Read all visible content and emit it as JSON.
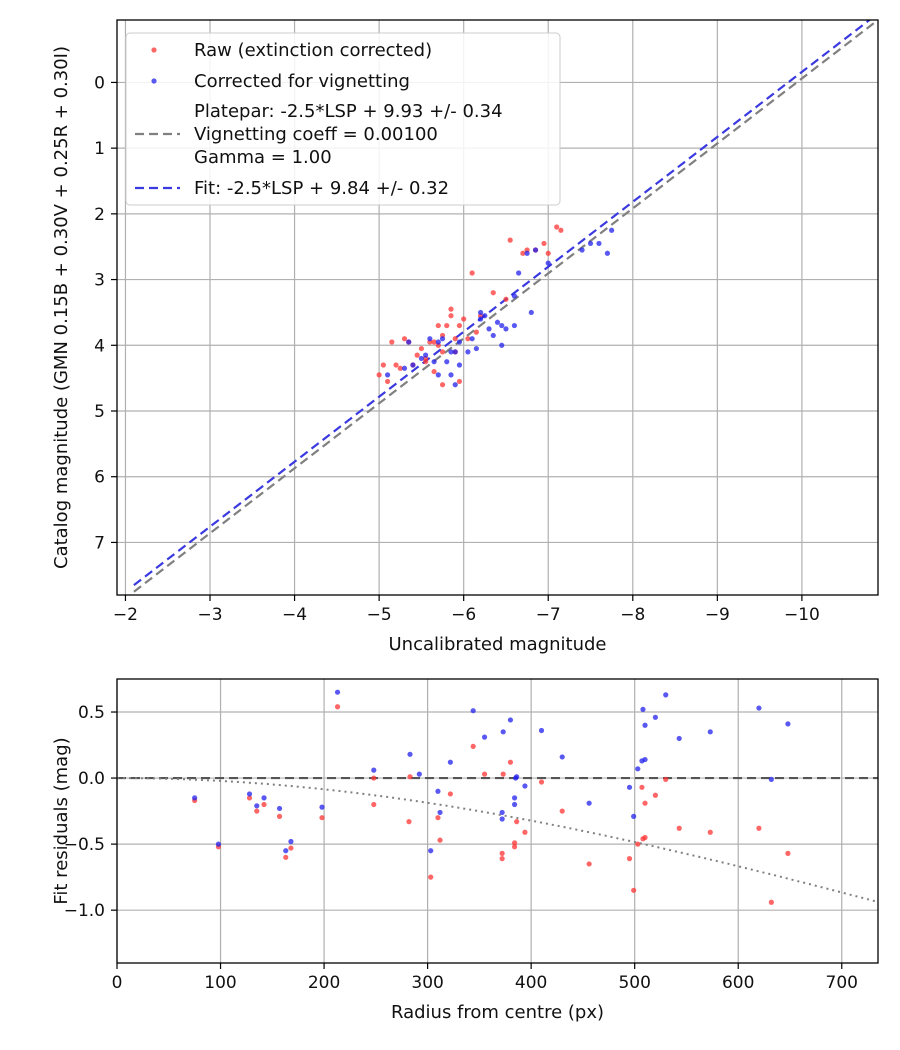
{
  "chart_data": [
    {
      "type": "scatter",
      "xlabel": "Uncalibrated magnitude",
      "ylabel": "Catalog magnitude (GMN 0.15B + 0.30V + 0.25R + 0.30I)",
      "xlim": [
        -1.9,
        -10.9
      ],
      "ylim": [
        7.8,
        -0.95
      ],
      "x_ticks": [
        -2,
        -3,
        -4,
        -5,
        -6,
        -7,
        -8,
        -9,
        -10
      ],
      "x_tick_labels": [
        "−2",
        "−3",
        "−4",
        "−5",
        "−6",
        "−7",
        "−8",
        "−9",
        "−10"
      ],
      "y_ticks": [
        0,
        1,
        2,
        3,
        4,
        5,
        6,
        7
      ],
      "y_tick_labels": [
        "0",
        "1",
        "2",
        "3",
        "4",
        "5",
        "6",
        "7"
      ],
      "grid": true,
      "legend_position": "top-left",
      "legend": {
        "raw": "Raw (extinction corrected)",
        "corrected": "Corrected for vignetting",
        "platepar_lines": [
          "Platepar: -2.5*LSP + 9.93 +/- 0.34",
          "Vignetting coeff = 0.00100",
          "Gamma = 1.00"
        ],
        "fit": "Fit: -2.5*LSP + 9.84 +/- 0.32"
      },
      "lines": [
        {
          "name": "platepar",
          "color": "#808080",
          "x": [
            -2.1,
            -10.9
          ],
          "y": [
            7.75,
            -0.95
          ]
        },
        {
          "name": "fit",
          "color": "#3a3ae0",
          "x": [
            -2.1,
            -10.9
          ],
          "y": [
            7.65,
            -1.05
          ]
        }
      ],
      "series": [
        {
          "name": "raw",
          "color": "#ff3333",
          "points": [
            [
              -5.0,
              4.45
            ],
            [
              -5.05,
              4.3
            ],
            [
              -5.1,
              4.55
            ],
            [
              -5.15,
              3.95
            ],
            [
              -5.2,
              4.3
            ],
            [
              -5.25,
              4.35
            ],
            [
              -5.3,
              3.9
            ],
            [
              -5.35,
              3.95
            ],
            [
              -5.4,
              4.3
            ],
            [
              -5.45,
              4.15
            ],
            [
              -5.5,
              4.05
            ],
            [
              -5.55,
              4.2
            ],
            [
              -5.6,
              3.95
            ],
            [
              -5.65,
              4.4
            ],
            [
              -5.7,
              4.0
            ],
            [
              -5.7,
              3.7
            ],
            [
              -5.75,
              3.85
            ],
            [
              -5.75,
              4.6
            ],
            [
              -5.8,
              3.7
            ],
            [
              -5.85,
              3.45
            ],
            [
              -5.85,
              3.55
            ],
            [
              -5.9,
              3.9
            ],
            [
              -5.9,
              4.1
            ],
            [
              -5.95,
              3.7
            ],
            [
              -5.95,
              4.55
            ],
            [
              -6.0,
              3.6
            ],
            [
              -6.05,
              3.9
            ],
            [
              -6.1,
              2.9
            ],
            [
              -6.15,
              3.8
            ],
            [
              -6.2,
              3.55
            ],
            [
              -6.35,
              3.2
            ],
            [
              -6.5,
              3.3
            ],
            [
              -6.55,
              2.4
            ],
            [
              -6.7,
              2.6
            ],
            [
              -6.75,
              2.55
            ],
            [
              -6.85,
              2.55
            ],
            [
              -6.95,
              2.45
            ],
            [
              -7.0,
              2.6
            ],
            [
              -7.1,
              2.2
            ],
            [
              -7.15,
              2.25
            ],
            [
              -5.55,
              4.25
            ],
            [
              -5.65,
              3.95
            ],
            [
              -5.75,
              4.1
            ]
          ]
        },
        {
          "name": "corrected",
          "color": "#2222ee",
          "points": [
            [
              -5.1,
              4.45
            ],
            [
              -5.3,
              4.35
            ],
            [
              -5.35,
              3.95
            ],
            [
              -5.4,
              4.3
            ],
            [
              -5.5,
              4.2
            ],
            [
              -5.6,
              3.9
            ],
            [
              -5.65,
              4.25
            ],
            [
              -5.7,
              3.95
            ],
            [
              -5.7,
              4.45
            ],
            [
              -5.75,
              3.9
            ],
            [
              -5.8,
              4.25
            ],
            [
              -5.85,
              4.45
            ],
            [
              -5.9,
              4.1
            ],
            [
              -5.9,
              4.6
            ],
            [
              -5.95,
              4.3
            ],
            [
              -5.95,
              3.95
            ],
            [
              -6.05,
              4.1
            ],
            [
              -6.1,
              3.9
            ],
            [
              -6.15,
              4.05
            ],
            [
              -6.2,
              3.5
            ],
            [
              -6.25,
              3.55
            ],
            [
              -6.3,
              3.75
            ],
            [
              -6.35,
              3.85
            ],
            [
              -6.4,
              3.65
            ],
            [
              -6.45,
              4.0
            ],
            [
              -6.45,
              3.7
            ],
            [
              -6.5,
              3.75
            ],
            [
              -6.6,
              3.25
            ],
            [
              -6.6,
              3.7
            ],
            [
              -6.65,
              2.9
            ],
            [
              -6.75,
              2.6
            ],
            [
              -6.8,
              3.5
            ],
            [
              -6.85,
              2.55
            ],
            [
              -7.0,
              2.75
            ],
            [
              -7.4,
              2.55
            ],
            [
              -7.5,
              2.45
            ],
            [
              -7.6,
              2.45
            ],
            [
              -7.7,
              2.6
            ],
            [
              -7.75,
              2.25
            ],
            [
              -5.55,
              4.15
            ],
            [
              -5.85,
              4.1
            ],
            [
              -6.2,
              3.6
            ]
          ]
        }
      ]
    },
    {
      "type": "scatter",
      "xlabel": "Radius from centre (px)",
      "ylabel": "Fit residuals (mag)",
      "xlim": [
        0,
        735
      ],
      "ylim": [
        -1.4,
        0.75
      ],
      "x_ticks": [
        0,
        100,
        200,
        300,
        400,
        500,
        600,
        700
      ],
      "x_tick_labels": [
        "0",
        "100",
        "200",
        "300",
        "400",
        "500",
        "600",
        "700"
      ],
      "y_ticks": [
        0.5,
        0.0,
        -0.5,
        -1.0
      ],
      "y_tick_labels": [
        "0.5",
        "0.0",
        "−0.5",
        "−1.0"
      ],
      "grid": true,
      "reference_line": {
        "y": 0.0,
        "color": "#555555",
        "style": "dashed"
      },
      "vignetting_curve": {
        "color": "#808080",
        "style": "dotted",
        "x_start": 0,
        "x_end": 735,
        "coeff": 0.001
      },
      "series": [
        {
          "name": "raw",
          "color": "#ff3333",
          "points": [
            [
              75,
              -0.17
            ],
            [
              98,
              -0.52
            ],
            [
              128,
              -0.15
            ],
            [
              135,
              -0.25
            ],
            [
              142,
              -0.2
            ],
            [
              157,
              -0.29
            ],
            [
              163,
              -0.6
            ],
            [
              168,
              -0.53
            ],
            [
              198,
              -0.3
            ],
            [
              213,
              0.54
            ],
            [
              248,
              -0.2
            ],
            [
              248,
              0.0
            ],
            [
              282,
              -0.33
            ],
            [
              283,
              0.01
            ],
            [
              303,
              -0.75
            ],
            [
              310,
              -0.3
            ],
            [
              312,
              -0.47
            ],
            [
              322,
              -0.12
            ],
            [
              344,
              0.24
            ],
            [
              355,
              0.03
            ],
            [
              372,
              -0.61
            ],
            [
              372,
              -0.57
            ],
            [
              373,
              0.03
            ],
            [
              380,
              0.12
            ],
            [
              384,
              -0.49
            ],
            [
              384,
              -0.52
            ],
            [
              386,
              -0.33
            ],
            [
              394,
              -0.41
            ],
            [
              410,
              -0.03
            ],
            [
              430,
              -0.25
            ],
            [
              456,
              -0.65
            ],
            [
              495,
              -0.61
            ],
            [
              499,
              -0.85
            ],
            [
              503,
              -0.5
            ],
            [
              507,
              -0.07
            ],
            [
              508,
              -0.46
            ],
            [
              510,
              -0.45
            ],
            [
              510,
              -0.19
            ],
            [
              520,
              -0.13
            ],
            [
              530,
              -0.01
            ],
            [
              543,
              -0.38
            ],
            [
              573,
              -0.41
            ],
            [
              620,
              -0.38
            ],
            [
              632,
              -0.94
            ],
            [
              648,
              -0.57
            ]
          ]
        },
        {
          "name": "corrected",
          "color": "#2222ee",
          "points": [
            [
              75,
              -0.15
            ],
            [
              98,
              -0.5
            ],
            [
              128,
              -0.12
            ],
            [
              135,
              -0.21
            ],
            [
              142,
              -0.15
            ],
            [
              157,
              -0.23
            ],
            [
              163,
              -0.55
            ],
            [
              168,
              -0.48
            ],
            [
              198,
              -0.22
            ],
            [
              213,
              0.65
            ],
            [
              248,
              0.06
            ],
            [
              283,
              0.18
            ],
            [
              292,
              0.03
            ],
            [
              303,
              -0.55
            ],
            [
              310,
              -0.1
            ],
            [
              312,
              -0.26
            ],
            [
              322,
              0.12
            ],
            [
              344,
              0.51
            ],
            [
              355,
              0.31
            ],
            [
              372,
              -0.31
            ],
            [
              372,
              -0.26
            ],
            [
              373,
              0.35
            ],
            [
              380,
              0.44
            ],
            [
              384,
              -0.2
            ],
            [
              384,
              -0.15
            ],
            [
              385,
              0.0
            ],
            [
              386,
              0.01
            ],
            [
              394,
              -0.06
            ],
            [
              410,
              0.36
            ],
            [
              430,
              0.16
            ],
            [
              456,
              -0.19
            ],
            [
              495,
              -0.07
            ],
            [
              499,
              -0.29
            ],
            [
              503,
              0.07
            ],
            [
              507,
              0.13
            ],
            [
              508,
              0.52
            ],
            [
              510,
              0.14
            ],
            [
              510,
              0.4
            ],
            [
              520,
              0.46
            ],
            [
              530,
              0.63
            ],
            [
              543,
              0.3
            ],
            [
              573,
              0.35
            ],
            [
              620,
              0.53
            ],
            [
              632,
              -0.01
            ],
            [
              648,
              0.41
            ]
          ]
        }
      ]
    }
  ]
}
